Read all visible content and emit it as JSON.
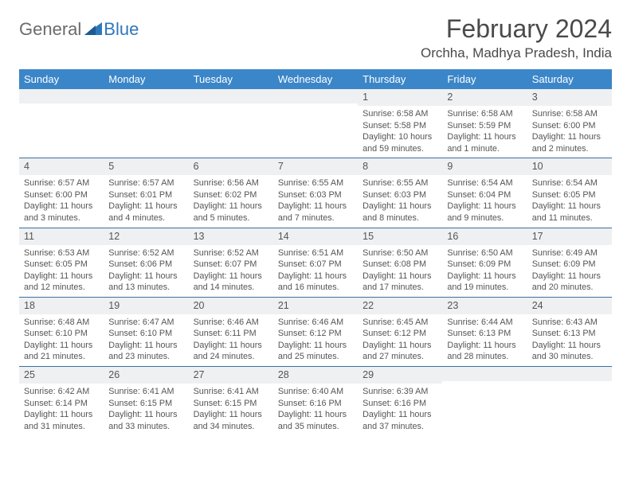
{
  "logo": {
    "general": "General",
    "blue": "Blue"
  },
  "header": {
    "month_title": "February 2024",
    "location": "Orchha, Madhya Pradesh, India"
  },
  "colors": {
    "header_bg": "#3b86c8",
    "header_text": "#ffffff",
    "row_border": "#3b6fa0",
    "daynum_bg": "#eef0f1",
    "logo_blue": "#2f77bb",
    "logo_gray": "#6b6b6b"
  },
  "day_headers": [
    "Sunday",
    "Monday",
    "Tuesday",
    "Wednesday",
    "Thursday",
    "Friday",
    "Saturday"
  ],
  "weeks": [
    [
      {
        "day": "",
        "sunrise": "",
        "sunset": "",
        "daylight": ""
      },
      {
        "day": "",
        "sunrise": "",
        "sunset": "",
        "daylight": ""
      },
      {
        "day": "",
        "sunrise": "",
        "sunset": "",
        "daylight": ""
      },
      {
        "day": "",
        "sunrise": "",
        "sunset": "",
        "daylight": ""
      },
      {
        "day": "1",
        "sunrise": "Sunrise: 6:58 AM",
        "sunset": "Sunset: 5:58 PM",
        "daylight": "Daylight: 10 hours and 59 minutes."
      },
      {
        "day": "2",
        "sunrise": "Sunrise: 6:58 AM",
        "sunset": "Sunset: 5:59 PM",
        "daylight": "Daylight: 11 hours and 1 minute."
      },
      {
        "day": "3",
        "sunrise": "Sunrise: 6:58 AM",
        "sunset": "Sunset: 6:00 PM",
        "daylight": "Daylight: 11 hours and 2 minutes."
      }
    ],
    [
      {
        "day": "4",
        "sunrise": "Sunrise: 6:57 AM",
        "sunset": "Sunset: 6:00 PM",
        "daylight": "Daylight: 11 hours and 3 minutes."
      },
      {
        "day": "5",
        "sunrise": "Sunrise: 6:57 AM",
        "sunset": "Sunset: 6:01 PM",
        "daylight": "Daylight: 11 hours and 4 minutes."
      },
      {
        "day": "6",
        "sunrise": "Sunrise: 6:56 AM",
        "sunset": "Sunset: 6:02 PM",
        "daylight": "Daylight: 11 hours and 5 minutes."
      },
      {
        "day": "7",
        "sunrise": "Sunrise: 6:55 AM",
        "sunset": "Sunset: 6:03 PM",
        "daylight": "Daylight: 11 hours and 7 minutes."
      },
      {
        "day": "8",
        "sunrise": "Sunrise: 6:55 AM",
        "sunset": "Sunset: 6:03 PM",
        "daylight": "Daylight: 11 hours and 8 minutes."
      },
      {
        "day": "9",
        "sunrise": "Sunrise: 6:54 AM",
        "sunset": "Sunset: 6:04 PM",
        "daylight": "Daylight: 11 hours and 9 minutes."
      },
      {
        "day": "10",
        "sunrise": "Sunrise: 6:54 AM",
        "sunset": "Sunset: 6:05 PM",
        "daylight": "Daylight: 11 hours and 11 minutes."
      }
    ],
    [
      {
        "day": "11",
        "sunrise": "Sunrise: 6:53 AM",
        "sunset": "Sunset: 6:05 PM",
        "daylight": "Daylight: 11 hours and 12 minutes."
      },
      {
        "day": "12",
        "sunrise": "Sunrise: 6:52 AM",
        "sunset": "Sunset: 6:06 PM",
        "daylight": "Daylight: 11 hours and 13 minutes."
      },
      {
        "day": "13",
        "sunrise": "Sunrise: 6:52 AM",
        "sunset": "Sunset: 6:07 PM",
        "daylight": "Daylight: 11 hours and 14 minutes."
      },
      {
        "day": "14",
        "sunrise": "Sunrise: 6:51 AM",
        "sunset": "Sunset: 6:07 PM",
        "daylight": "Daylight: 11 hours and 16 minutes."
      },
      {
        "day": "15",
        "sunrise": "Sunrise: 6:50 AM",
        "sunset": "Sunset: 6:08 PM",
        "daylight": "Daylight: 11 hours and 17 minutes."
      },
      {
        "day": "16",
        "sunrise": "Sunrise: 6:50 AM",
        "sunset": "Sunset: 6:09 PM",
        "daylight": "Daylight: 11 hours and 19 minutes."
      },
      {
        "day": "17",
        "sunrise": "Sunrise: 6:49 AM",
        "sunset": "Sunset: 6:09 PM",
        "daylight": "Daylight: 11 hours and 20 minutes."
      }
    ],
    [
      {
        "day": "18",
        "sunrise": "Sunrise: 6:48 AM",
        "sunset": "Sunset: 6:10 PM",
        "daylight": "Daylight: 11 hours and 21 minutes."
      },
      {
        "day": "19",
        "sunrise": "Sunrise: 6:47 AM",
        "sunset": "Sunset: 6:10 PM",
        "daylight": "Daylight: 11 hours and 23 minutes."
      },
      {
        "day": "20",
        "sunrise": "Sunrise: 6:46 AM",
        "sunset": "Sunset: 6:11 PM",
        "daylight": "Daylight: 11 hours and 24 minutes."
      },
      {
        "day": "21",
        "sunrise": "Sunrise: 6:46 AM",
        "sunset": "Sunset: 6:12 PM",
        "daylight": "Daylight: 11 hours and 25 minutes."
      },
      {
        "day": "22",
        "sunrise": "Sunrise: 6:45 AM",
        "sunset": "Sunset: 6:12 PM",
        "daylight": "Daylight: 11 hours and 27 minutes."
      },
      {
        "day": "23",
        "sunrise": "Sunrise: 6:44 AM",
        "sunset": "Sunset: 6:13 PM",
        "daylight": "Daylight: 11 hours and 28 minutes."
      },
      {
        "day": "24",
        "sunrise": "Sunrise: 6:43 AM",
        "sunset": "Sunset: 6:13 PM",
        "daylight": "Daylight: 11 hours and 30 minutes."
      }
    ],
    [
      {
        "day": "25",
        "sunrise": "Sunrise: 6:42 AM",
        "sunset": "Sunset: 6:14 PM",
        "daylight": "Daylight: 11 hours and 31 minutes."
      },
      {
        "day": "26",
        "sunrise": "Sunrise: 6:41 AM",
        "sunset": "Sunset: 6:15 PM",
        "daylight": "Daylight: 11 hours and 33 minutes."
      },
      {
        "day": "27",
        "sunrise": "Sunrise: 6:41 AM",
        "sunset": "Sunset: 6:15 PM",
        "daylight": "Daylight: 11 hours and 34 minutes."
      },
      {
        "day": "28",
        "sunrise": "Sunrise: 6:40 AM",
        "sunset": "Sunset: 6:16 PM",
        "daylight": "Daylight: 11 hours and 35 minutes."
      },
      {
        "day": "29",
        "sunrise": "Sunrise: 6:39 AM",
        "sunset": "Sunset: 6:16 PM",
        "daylight": "Daylight: 11 hours and 37 minutes."
      },
      {
        "day": "",
        "sunrise": "",
        "sunset": "",
        "daylight": ""
      },
      {
        "day": "",
        "sunrise": "",
        "sunset": "",
        "daylight": ""
      }
    ]
  ]
}
